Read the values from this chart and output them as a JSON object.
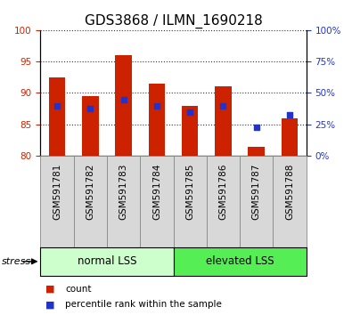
{
  "title": "GDS3868 / ILMN_1690218",
  "categories": [
    "GSM591781",
    "GSM591782",
    "GSM591783",
    "GSM591784",
    "GSM591785",
    "GSM591786",
    "GSM591787",
    "GSM591788"
  ],
  "red_values": [
    92.5,
    89.5,
    96.0,
    91.5,
    88.0,
    91.0,
    81.5,
    86.0
  ],
  "blue_values": [
    88.0,
    87.5,
    89.0,
    88.0,
    87.0,
    88.0,
    84.5,
    86.5
  ],
  "ylim_left": [
    80,
    100
  ],
  "ylim_right": [
    0,
    100
  ],
  "yticks_left": [
    80,
    85,
    90,
    95,
    100
  ],
  "yticks_right": [
    0,
    25,
    50,
    75,
    100
  ],
  "ytick_labels_right": [
    "0%",
    "25%",
    "50%",
    "75%",
    "100%"
  ],
  "group1_label": "normal LSS",
  "group2_label": "elevated LSS",
  "group1_indices": [
    0,
    1,
    2,
    3
  ],
  "group2_indices": [
    4,
    5,
    6,
    7
  ],
  "stress_label": "stress",
  "legend_items": [
    "count",
    "percentile rank within the sample"
  ],
  "legend_colors": [
    "#cc2200",
    "#2233cc"
  ],
  "bar_color": "#cc2200",
  "dot_color": "#2233cc",
  "group1_color": "#ccffcc",
  "group2_color": "#55ee55",
  "bar_width": 0.5,
  "ylabel_left_color": "#cc2200",
  "ylabel_right_color": "#2233cc",
  "title_fontsize": 11,
  "tick_fontsize": 7.5,
  "label_fontsize": 7.5
}
